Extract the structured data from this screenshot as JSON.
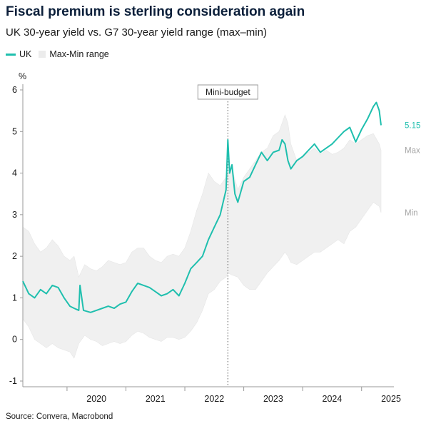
{
  "title": "Fiscal premium is sterling consideration again",
  "subtitle": "UK 30-year yield vs. G7 30-year yield range (max–min)",
  "legend": {
    "uk_label": "UK",
    "range_label": "Max-Min range"
  },
  "source": "Source: Convera, Macrobond",
  "colors": {
    "uk": "#1fbfae",
    "range": "#f0f0f0",
    "range_label": "#a6a6a6",
    "axis": "#9a9a9a"
  },
  "chart_data": {
    "type": "area",
    "title": "Fiscal premium is sterling consideration again",
    "xlabel": "",
    "ylabel": "%",
    "xlim": [
      2019.25,
      2025.5
    ],
    "ylim": [
      -1,
      6
    ],
    "y_ticks": [
      -1,
      0,
      1,
      2,
      3,
      4,
      5,
      6
    ],
    "x_tick_labels": [
      "2020",
      "2021",
      "2022",
      "2023",
      "2024",
      "2025"
    ],
    "x_tick_positions": [
      2020,
      2021,
      2022,
      2023,
      2024,
      2025
    ],
    "grid": false,
    "legend_position": "top-left",
    "annotation": {
      "label": "Mini-budget",
      "x": 2022.73
    },
    "end_labels": {
      "uk": "5.15",
      "max": "Max",
      "min": "Min"
    },
    "series": [
      {
        "name": "UK",
        "type": "line",
        "x": [
          2019.25,
          2019.35,
          2019.45,
          2019.55,
          2019.65,
          2019.75,
          2019.85,
          2019.95,
          2020.05,
          2020.12,
          2020.2,
          2020.22,
          2020.28,
          2020.4,
          2020.5,
          2020.6,
          2020.7,
          2020.8,
          2020.9,
          2021.0,
          2021.1,
          2021.2,
          2021.3,
          2021.4,
          2021.5,
          2021.6,
          2021.7,
          2021.8,
          2021.9,
          2022.0,
          2022.1,
          2022.2,
          2022.3,
          2022.4,
          2022.5,
          2022.6,
          2022.7,
          2022.73,
          2022.76,
          2022.8,
          2022.85,
          2022.9,
          2023.0,
          2023.1,
          2023.2,
          2023.3,
          2023.4,
          2023.5,
          2023.6,
          2023.65,
          2023.7,
          2023.75,
          2023.8,
          2023.9,
          2024.0,
          2024.1,
          2024.2,
          2024.3,
          2024.4,
          2024.5,
          2024.6,
          2024.7,
          2024.8,
          2024.9,
          2025.0,
          2025.1,
          2025.2,
          2025.25,
          2025.3,
          2025.33
        ],
        "values": [
          1.4,
          1.1,
          1.0,
          1.2,
          1.1,
          1.3,
          1.25,
          1.0,
          0.8,
          0.75,
          0.7,
          1.3,
          0.7,
          0.65,
          0.7,
          0.75,
          0.8,
          0.75,
          0.85,
          0.9,
          1.15,
          1.35,
          1.3,
          1.25,
          1.15,
          1.05,
          1.1,
          1.2,
          1.05,
          1.35,
          1.7,
          1.85,
          2.0,
          2.4,
          2.7,
          3.0,
          3.6,
          4.8,
          4.0,
          4.2,
          3.5,
          3.3,
          3.8,
          3.9,
          4.2,
          4.5,
          4.3,
          4.5,
          4.55,
          4.8,
          4.7,
          4.3,
          4.1,
          4.3,
          4.4,
          4.55,
          4.7,
          4.5,
          4.6,
          4.7,
          4.85,
          5.0,
          5.1,
          4.75,
          5.05,
          5.3,
          5.6,
          5.7,
          5.5,
          5.15
        ]
      },
      {
        "name": "Max",
        "type": "range_upper",
        "x": [
          2019.25,
          2019.35,
          2019.45,
          2019.55,
          2019.65,
          2019.75,
          2019.85,
          2019.95,
          2020.05,
          2020.12,
          2020.2,
          2020.3,
          2020.4,
          2020.5,
          2020.6,
          2020.7,
          2020.8,
          2020.9,
          2021.0,
          2021.1,
          2021.2,
          2021.3,
          2021.4,
          2021.5,
          2021.6,
          2021.7,
          2021.8,
          2021.9,
          2022.0,
          2022.1,
          2022.2,
          2022.3,
          2022.4,
          2022.5,
          2022.6,
          2022.7,
          2022.73,
          2022.8,
          2022.9,
          2023.0,
          2023.1,
          2023.2,
          2023.3,
          2023.4,
          2023.5,
          2023.6,
          2023.7,
          2023.75,
          2023.8,
          2023.9,
          2024.0,
          2024.1,
          2024.2,
          2024.3,
          2024.4,
          2024.5,
          2024.6,
          2024.7,
          2024.8,
          2024.9,
          2025.0,
          2025.1,
          2025.2,
          2025.3,
          2025.33
        ],
        "values": [
          2.7,
          2.6,
          2.3,
          2.1,
          2.2,
          2.4,
          2.25,
          2.0,
          1.9,
          2.0,
          1.5,
          1.8,
          1.7,
          1.65,
          1.75,
          1.9,
          1.85,
          1.8,
          1.85,
          2.1,
          2.2,
          2.2,
          2.0,
          1.9,
          1.85,
          2.0,
          2.05,
          2.0,
          2.2,
          2.6,
          3.1,
          3.5,
          4.0,
          3.8,
          3.7,
          3.9,
          4.0,
          4.1,
          3.6,
          3.9,
          4.1,
          4.3,
          4.5,
          4.6,
          4.9,
          5.0,
          5.4,
          5.2,
          4.7,
          4.3,
          4.4,
          4.5,
          4.6,
          4.45,
          4.55,
          4.45,
          4.5,
          4.6,
          4.8,
          4.7,
          4.8,
          4.9,
          4.95,
          4.7,
          4.55
        ]
      },
      {
        "name": "Min",
        "type": "range_lower",
        "x": [
          2019.25,
          2019.35,
          2019.45,
          2019.55,
          2019.65,
          2019.75,
          2019.85,
          2019.95,
          2020.05,
          2020.12,
          2020.2,
          2020.3,
          2020.4,
          2020.5,
          2020.6,
          2020.7,
          2020.8,
          2020.9,
          2021.0,
          2021.1,
          2021.2,
          2021.3,
          2021.4,
          2021.5,
          2021.6,
          2021.7,
          2021.8,
          2021.9,
          2022.0,
          2022.1,
          2022.2,
          2022.3,
          2022.4,
          2022.5,
          2022.6,
          2022.7,
          2022.73,
          2022.8,
          2022.9,
          2023.0,
          2023.1,
          2023.2,
          2023.3,
          2023.4,
          2023.5,
          2023.6,
          2023.7,
          2023.75,
          2023.8,
          2023.9,
          2024.0,
          2024.1,
          2024.2,
          2024.3,
          2024.4,
          2024.5,
          2024.6,
          2024.7,
          2024.8,
          2024.9,
          2025.0,
          2025.1,
          2025.2,
          2025.3,
          2025.33
        ],
        "values": [
          0.5,
          0.3,
          0.0,
          -0.1,
          -0.2,
          -0.1,
          -0.2,
          -0.25,
          -0.3,
          -0.45,
          -0.1,
          0.1,
          0.0,
          -0.05,
          -0.15,
          -0.1,
          -0.05,
          -0.1,
          -0.05,
          0.1,
          0.2,
          0.15,
          0.05,
          0.0,
          -0.05,
          0.05,
          0.05,
          0.0,
          0.05,
          0.2,
          0.4,
          0.7,
          1.1,
          1.2,
          1.4,
          1.5,
          1.6,
          1.55,
          1.5,
          1.3,
          1.2,
          1.2,
          1.4,
          1.6,
          1.75,
          1.9,
          2.1,
          2.0,
          1.85,
          1.8,
          1.9,
          2.0,
          2.1,
          2.1,
          2.2,
          2.3,
          2.4,
          2.3,
          2.6,
          2.7,
          2.9,
          3.1,
          3.3,
          3.2,
          3.05
        ]
      }
    ]
  }
}
